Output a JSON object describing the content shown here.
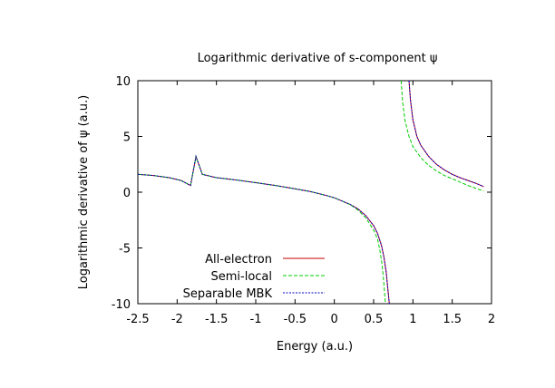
{
  "chart_data": {
    "type": "line",
    "title": "Logarithmic derivative of s-component ψ",
    "xlabel": "Energy (a.u.)",
    "ylabel": "Logarithmic derivative of ψ (a.u.)",
    "xlim": [
      -2.5,
      2
    ],
    "ylim": [
      -10,
      10
    ],
    "xticks": [
      "-2.5",
      "-2",
      "-1.5",
      "-1",
      "-0.5",
      "0",
      "0.5",
      "1",
      "1.5",
      "2"
    ],
    "yticks": [
      "10",
      "5",
      "0",
      "-5",
      "-10"
    ],
    "xtick_values": [
      -2.5,
      -2,
      -1.5,
      -1,
      -0.5,
      0,
      0.5,
      1,
      1.5,
      2
    ],
    "ytick_values": [
      10,
      5,
      0,
      -5,
      -10
    ],
    "grid": false,
    "legend_position": "bottom-left",
    "series": [
      {
        "name": "All-electron",
        "color": "#cc0000",
        "dash": "solid",
        "segments": [
          [
            [
              -2.5,
              1.6
            ],
            [
              -2.3,
              1.5
            ],
            [
              -2.1,
              1.3
            ],
            [
              -1.95,
              1.05
            ],
            [
              -1.83,
              0.6
            ],
            [
              -1.76,
              3.2
            ],
            [
              -1.68,
              1.6
            ],
            [
              -1.5,
              1.3
            ],
            [
              -1.25,
              1.1
            ],
            [
              -1.0,
              0.85
            ],
            [
              -0.75,
              0.6
            ],
            [
              -0.5,
              0.3
            ],
            [
              -0.3,
              0.05
            ],
            [
              -0.1,
              -0.3
            ],
            [
              0.0,
              -0.5
            ],
            [
              0.1,
              -0.8
            ],
            [
              0.2,
              -1.1
            ],
            [
              0.3,
              -1.5
            ],
            [
              0.4,
              -2.1
            ],
            [
              0.5,
              -3.0
            ],
            [
              0.55,
              -3.7
            ],
            [
              0.6,
              -4.8
            ],
            [
              0.63,
              -5.8
            ],
            [
              0.66,
              -7.2
            ],
            [
              0.68,
              -8.6
            ],
            [
              0.7,
              -10
            ]
          ],
          [
            [
              0.95,
              10
            ],
            [
              0.97,
              8.2
            ],
            [
              1.0,
              6.5
            ],
            [
              1.05,
              5.0
            ],
            [
              1.1,
              4.2
            ],
            [
              1.2,
              3.2
            ],
            [
              1.3,
              2.5
            ],
            [
              1.4,
              2.0
            ],
            [
              1.5,
              1.6
            ],
            [
              1.6,
              1.3
            ],
            [
              1.7,
              1.05
            ],
            [
              1.8,
              0.8
            ],
            [
              1.9,
              0.5
            ]
          ]
        ]
      },
      {
        "name": "Semi-local",
        "color": "#00cc00",
        "dash": "dash",
        "segments": [
          [
            [
              -2.5,
              1.6
            ],
            [
              -2.3,
              1.5
            ],
            [
              -2.1,
              1.3
            ],
            [
              -1.95,
              1.05
            ],
            [
              -1.83,
              0.6
            ],
            [
              -1.76,
              3.2
            ],
            [
              -1.68,
              1.6
            ],
            [
              -1.5,
              1.3
            ],
            [
              -1.25,
              1.1
            ],
            [
              -1.0,
              0.85
            ],
            [
              -0.75,
              0.6
            ],
            [
              -0.5,
              0.3
            ],
            [
              -0.3,
              0.05
            ],
            [
              -0.1,
              -0.3
            ],
            [
              0.0,
              -0.5
            ],
            [
              0.1,
              -0.8
            ],
            [
              0.2,
              -1.1
            ],
            [
              0.3,
              -1.6
            ],
            [
              0.4,
              -2.3
            ],
            [
              0.5,
              -3.4
            ],
            [
              0.55,
              -4.2
            ],
            [
              0.58,
              -5.2
            ],
            [
              0.61,
              -6.6
            ],
            [
              0.63,
              -8.2
            ],
            [
              0.65,
              -10
            ]
          ],
          [
            [
              0.85,
              10
            ],
            [
              0.87,
              8.0
            ],
            [
              0.9,
              6.4
            ],
            [
              0.95,
              5.0
            ],
            [
              1.0,
              4.1
            ],
            [
              1.1,
              3.1
            ],
            [
              1.2,
              2.4
            ],
            [
              1.3,
              1.9
            ],
            [
              1.4,
              1.5
            ],
            [
              1.5,
              1.2
            ],
            [
              1.6,
              0.9
            ],
            [
              1.7,
              0.6
            ],
            [
              1.8,
              0.35
            ],
            [
              1.9,
              0.1
            ]
          ]
        ]
      },
      {
        "name": "Separable MBK",
        "color": "#0000cc",
        "dash": "dot",
        "segments": [
          [
            [
              -2.5,
              1.6
            ],
            [
              -2.3,
              1.5
            ],
            [
              -2.1,
              1.3
            ],
            [
              -1.95,
              1.05
            ],
            [
              -1.83,
              0.6
            ],
            [
              -1.76,
              3.2
            ],
            [
              -1.68,
              1.6
            ],
            [
              -1.5,
              1.3
            ],
            [
              -1.25,
              1.1
            ],
            [
              -1.0,
              0.85
            ],
            [
              -0.75,
              0.6
            ],
            [
              -0.5,
              0.3
            ],
            [
              -0.3,
              0.05
            ],
            [
              -0.1,
              -0.3
            ],
            [
              0.0,
              -0.5
            ],
            [
              0.1,
              -0.8
            ],
            [
              0.2,
              -1.1
            ],
            [
              0.3,
              -1.5
            ],
            [
              0.4,
              -2.1
            ],
            [
              0.5,
              -3.0
            ],
            [
              0.55,
              -3.7
            ],
            [
              0.6,
              -4.8
            ],
            [
              0.63,
              -5.8
            ],
            [
              0.66,
              -7.2
            ],
            [
              0.68,
              -8.6
            ],
            [
              0.7,
              -10
            ]
          ],
          [
            [
              0.95,
              10
            ],
            [
              0.97,
              8.2
            ],
            [
              1.0,
              6.5
            ],
            [
              1.05,
              5.0
            ],
            [
              1.1,
              4.2
            ],
            [
              1.2,
              3.2
            ],
            [
              1.3,
              2.5
            ],
            [
              1.4,
              2.0
            ],
            [
              1.5,
              1.6
            ],
            [
              1.6,
              1.3
            ],
            [
              1.7,
              1.05
            ],
            [
              1.8,
              0.8
            ],
            [
              1.9,
              0.5
            ]
          ]
        ]
      }
    ]
  }
}
